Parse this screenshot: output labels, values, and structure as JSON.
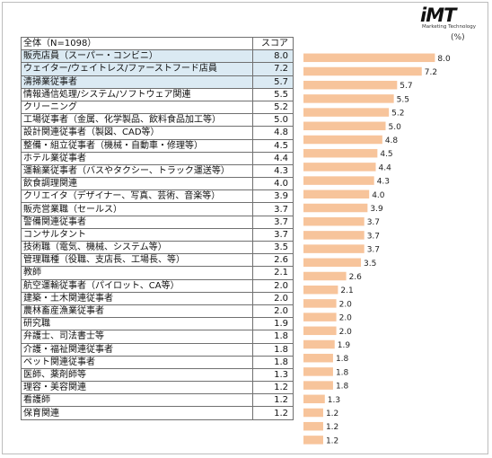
{
  "logo": {
    "mark": "iMT",
    "sub": "Marketing Technology"
  },
  "unit_label": "(%)",
  "table": {
    "header": {
      "label": "全体（N=1098）",
      "score": "スコア"
    }
  },
  "highlight_count": 3,
  "colors": {
    "bar": "#f7c49b",
    "highlight_row": "#dbeaf3",
    "border": "#707070"
  },
  "chart_data": {
    "type": "bar",
    "orientation": "horizontal",
    "categories": [
      "販売店員（スーパー・コンビニ）",
      "ウェイター/ウェイトレス/ファーストフード店員",
      "清掃業従事者",
      "情報通信処理/システム/ソフトウェア関連",
      "クリーニング",
      "工場従事者（金属、化学製品、飲料食品加工等）",
      "設計関連従事者（製図、CAD等）",
      "整備・組立従事者（機械・自動車・修理等）",
      "ホテル業従事者",
      "運輸業従事者（バスやタクシー、トラック運送等）",
      "飲食調理関連",
      "クリエイタ（デザイナー、写真、芸術、音楽等）",
      "販売営業職（セールス）",
      "警備関連従事者",
      "コンサルタント",
      "技術職（電気、機械、システム等）",
      "管理職種（役職、支店長、工場長、等）",
      "教師",
      "航空運輸従事者（パイロット、CA等）",
      "建築・土木関連従事者",
      "農林畜産漁業従事者",
      "研究職",
      "弁護士、司法書士等",
      "介護・福祉関連従事者",
      "ペット関連従事者",
      "医師、薬剤師等",
      "理容・美容関連",
      "看護師",
      "保育関連"
    ],
    "values": [
      8.0,
      7.2,
      5.7,
      5.5,
      5.2,
      5.0,
      4.8,
      4.5,
      4.4,
      4.3,
      4.0,
      3.9,
      3.7,
      3.7,
      3.7,
      3.5,
      2.6,
      2.1,
      2.0,
      2.0,
      2.0,
      1.9,
      1.8,
      1.8,
      1.8,
      1.3,
      1.2,
      1.2,
      1.2
    ],
    "value_labels": [
      "8.0",
      "7.2",
      "5.7",
      "5.5",
      "5.2",
      "5.0",
      "4.8",
      "4.5",
      "4.4",
      "4.3",
      "4.0",
      "3.9",
      "3.7",
      "3.7",
      "3.7",
      "3.5",
      "2.6",
      "2.1",
      "2.0",
      "2.0",
      "2.0",
      "1.9",
      "1.8",
      "1.8",
      "1.8",
      "1.3",
      "1.2",
      "1.2",
      "1.2"
    ],
    "xlim": [
      0,
      8.0
    ],
    "grid": false,
    "legend": "none"
  }
}
